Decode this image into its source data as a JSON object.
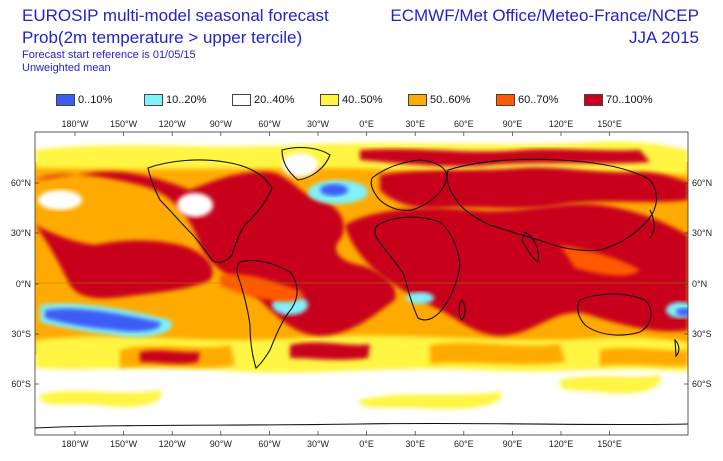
{
  "header": {
    "title_line1": "EUROSIP multi-model seasonal forecast",
    "title_line2": "Prob(2m temperature > upper tercile)",
    "title_line3": "Forecast start reference is 01/05/15",
    "title_line4": "Unweighted mean",
    "right_line1": "ECMWF/Met Office/Meteo-France/NCEP",
    "right_line2": "JJA 2015"
  },
  "legend": [
    {
      "label": "0..10%",
      "color": "#3d5cf5"
    },
    {
      "label": "10..20%",
      "color": "#7ff2fa"
    },
    {
      "label": "20..40%",
      "color": "#ffffff"
    },
    {
      "label": "40..50%",
      "color": "#fff542"
    },
    {
      "label": "50..60%",
      "color": "#ffaa00"
    },
    {
      "label": "60..70%",
      "color": "#ff5a00"
    },
    {
      "label": "70..100%",
      "color": "#c8001e"
    }
  ],
  "map": {
    "lon_labels": [
      "180°W",
      "150°W",
      "120°W",
      "90°W",
      "60°W",
      "30°W",
      "0°E",
      "30°E",
      "60°E",
      "90°E",
      "120°E",
      "150°E"
    ],
    "lat_labels": [
      "60°N",
      "30°N",
      "0°N",
      "30°S",
      "60°S"
    ],
    "colors": {
      "very_high": "#c8001e",
      "high": "#ff5a00",
      "mid_high": "#ffaa00",
      "mid": "#fff542",
      "neutral": "#ffffff",
      "low": "#7ff2fa",
      "very_low": "#3d5cf5",
      "coast": "#111111"
    }
  }
}
